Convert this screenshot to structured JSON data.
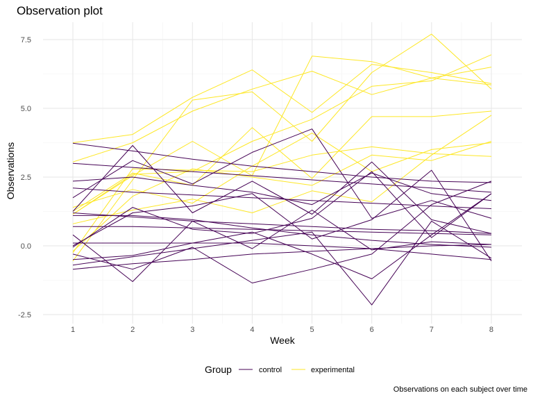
{
  "chart_data": {
    "type": "line",
    "title": "Observation plot",
    "xlabel": "Week",
    "ylabel": "Observations",
    "caption": "Observations on each subject over time",
    "x": [
      1,
      2,
      3,
      4,
      5,
      6,
      7,
      8
    ],
    "xlim": [
      0.5,
      8.5
    ],
    "ylim": [
      -2.6,
      8.0
    ],
    "x_ticks": [
      "1",
      "2",
      "3",
      "4",
      "5",
      "6",
      "7",
      "8"
    ],
    "y_ticks": [
      "-2.5",
      "0.0",
      "2.5",
      "5.0",
      "7.5"
    ],
    "y_tick_values": [
      -2.5,
      0.0,
      2.5,
      5.0,
      7.5
    ],
    "grid": true,
    "legend": {
      "title": "Group",
      "position": "bottom",
      "entries": [
        {
          "label": "control",
          "color": "#440154"
        },
        {
          "label": "experimental",
          "color": "#FDE725"
        }
      ]
    },
    "series": [
      {
        "group": "control",
        "values": [
          3.73,
          3.45,
          3.15,
          2.9,
          2.7,
          2.5,
          2.35,
          2.3
        ]
      },
      {
        "group": "control",
        "values": [
          3.0,
          2.85,
          2.7,
          2.55,
          2.4,
          2.25,
          2.1,
          1.95
        ]
      },
      {
        "group": "control",
        "values": [
          2.1,
          1.95,
          1.85,
          1.75,
          1.65,
          1.55,
          1.45,
          1.35
        ]
      },
      {
        "group": "control",
        "values": [
          2.35,
          2.5,
          2.2,
          1.95,
          1.5,
          2.65,
          1.9,
          1.65
        ]
      },
      {
        "group": "control",
        "values": [
          1.75,
          3.1,
          2.25,
          3.4,
          4.25,
          1.0,
          1.65,
          1.0
        ]
      },
      {
        "group": "control",
        "values": [
          1.25,
          3.65,
          1.2,
          2.35,
          1.15,
          3.05,
          0.95,
          0.45
        ]
      },
      {
        "group": "control",
        "values": [
          1.1,
          1.1,
          0.95,
          0.65,
          0.4,
          0.2,
          0.05,
          -0.05
        ]
      },
      {
        "group": "control",
        "values": [
          0.7,
          0.7,
          0.65,
          0.6,
          0.55,
          0.5,
          0.45,
          0.4
        ]
      },
      {
        "group": "control",
        "values": [
          1.2,
          1.05,
          0.9,
          0.8,
          0.7,
          0.6,
          0.55,
          0.45
        ]
      },
      {
        "group": "control",
        "values": [
          0.0,
          1.2,
          1.45,
          1.9,
          0.25,
          0.95,
          2.75,
          -0.55
        ]
      },
      {
        "group": "control",
        "values": [
          -0.05,
          1.4,
          0.6,
          0.45,
          1.0,
          2.7,
          0.3,
          1.9
        ]
      },
      {
        "group": "control",
        "values": [
          0.4,
          -1.3,
          0.9,
          -0.1,
          1.3,
          -0.15,
          0.15,
          0.05
        ]
      },
      {
        "group": "control",
        "values": [
          -0.5,
          -0.35,
          0.1,
          0.5,
          -0.3,
          -1.2,
          0.4,
          1.9
        ]
      },
      {
        "group": "control",
        "values": [
          -0.7,
          -0.4,
          -0.1,
          0.2,
          0.5,
          -2.15,
          0.9,
          -0.45
        ]
      },
      {
        "group": "control",
        "values": [
          -0.3,
          -0.85,
          -0.05,
          -1.35,
          -0.85,
          -0.3,
          1.5,
          2.35
        ]
      },
      {
        "group": "control",
        "values": [
          -0.85,
          -0.65,
          -0.5,
          -0.3,
          -0.2,
          -0.1,
          0.0,
          0.05
        ]
      },
      {
        "group": "control",
        "values": [
          0.1,
          0.1,
          0.1,
          0.1,
          0.0,
          -0.1,
          -0.3,
          -0.5
        ]
      },
      {
        "group": "experimental",
        "values": [
          3.75,
          4.05,
          5.4,
          6.4,
          4.85,
          6.6,
          6.3,
          5.9
        ]
      },
      {
        "group": "experimental",
        "values": [
          3.05,
          3.75,
          4.9,
          5.7,
          6.35,
          5.5,
          6.1,
          5.85
        ]
      },
      {
        "group": "experimental",
        "values": [
          1.15,
          2.55,
          3.8,
          2.55,
          6.9,
          6.7,
          6.1,
          6.5
        ]
      },
      {
        "group": "experimental",
        "values": [
          -0.55,
          2.4,
          5.3,
          5.6,
          3.8,
          6.3,
          7.7,
          5.7
        ]
      },
      {
        "group": "experimental",
        "values": [
          1.15,
          2.6,
          2.7,
          3.8,
          4.6,
          5.8,
          6.0,
          6.95
        ]
      },
      {
        "group": "experimental",
        "values": [
          1.25,
          2.65,
          2.2,
          4.3,
          2.45,
          4.7,
          4.7,
          4.9
        ]
      },
      {
        "group": "experimental",
        "values": [
          -0.25,
          2.8,
          2.75,
          2.7,
          3.3,
          3.6,
          3.35,
          3.25
        ]
      },
      {
        "group": "experimental",
        "values": [
          1.4,
          2.05,
          1.55,
          2.9,
          4.1,
          2.7,
          3.5,
          3.75
        ]
      },
      {
        "group": "experimental",
        "values": [
          0.8,
          1.3,
          1.7,
          1.2,
          2.0,
          1.6,
          3.3,
          4.75
        ]
      },
      {
        "group": "experimental",
        "values": [
          -0.2,
          1.8,
          2.8,
          2.5,
          2.2,
          3.3,
          3.1,
          3.8
        ]
      }
    ]
  }
}
